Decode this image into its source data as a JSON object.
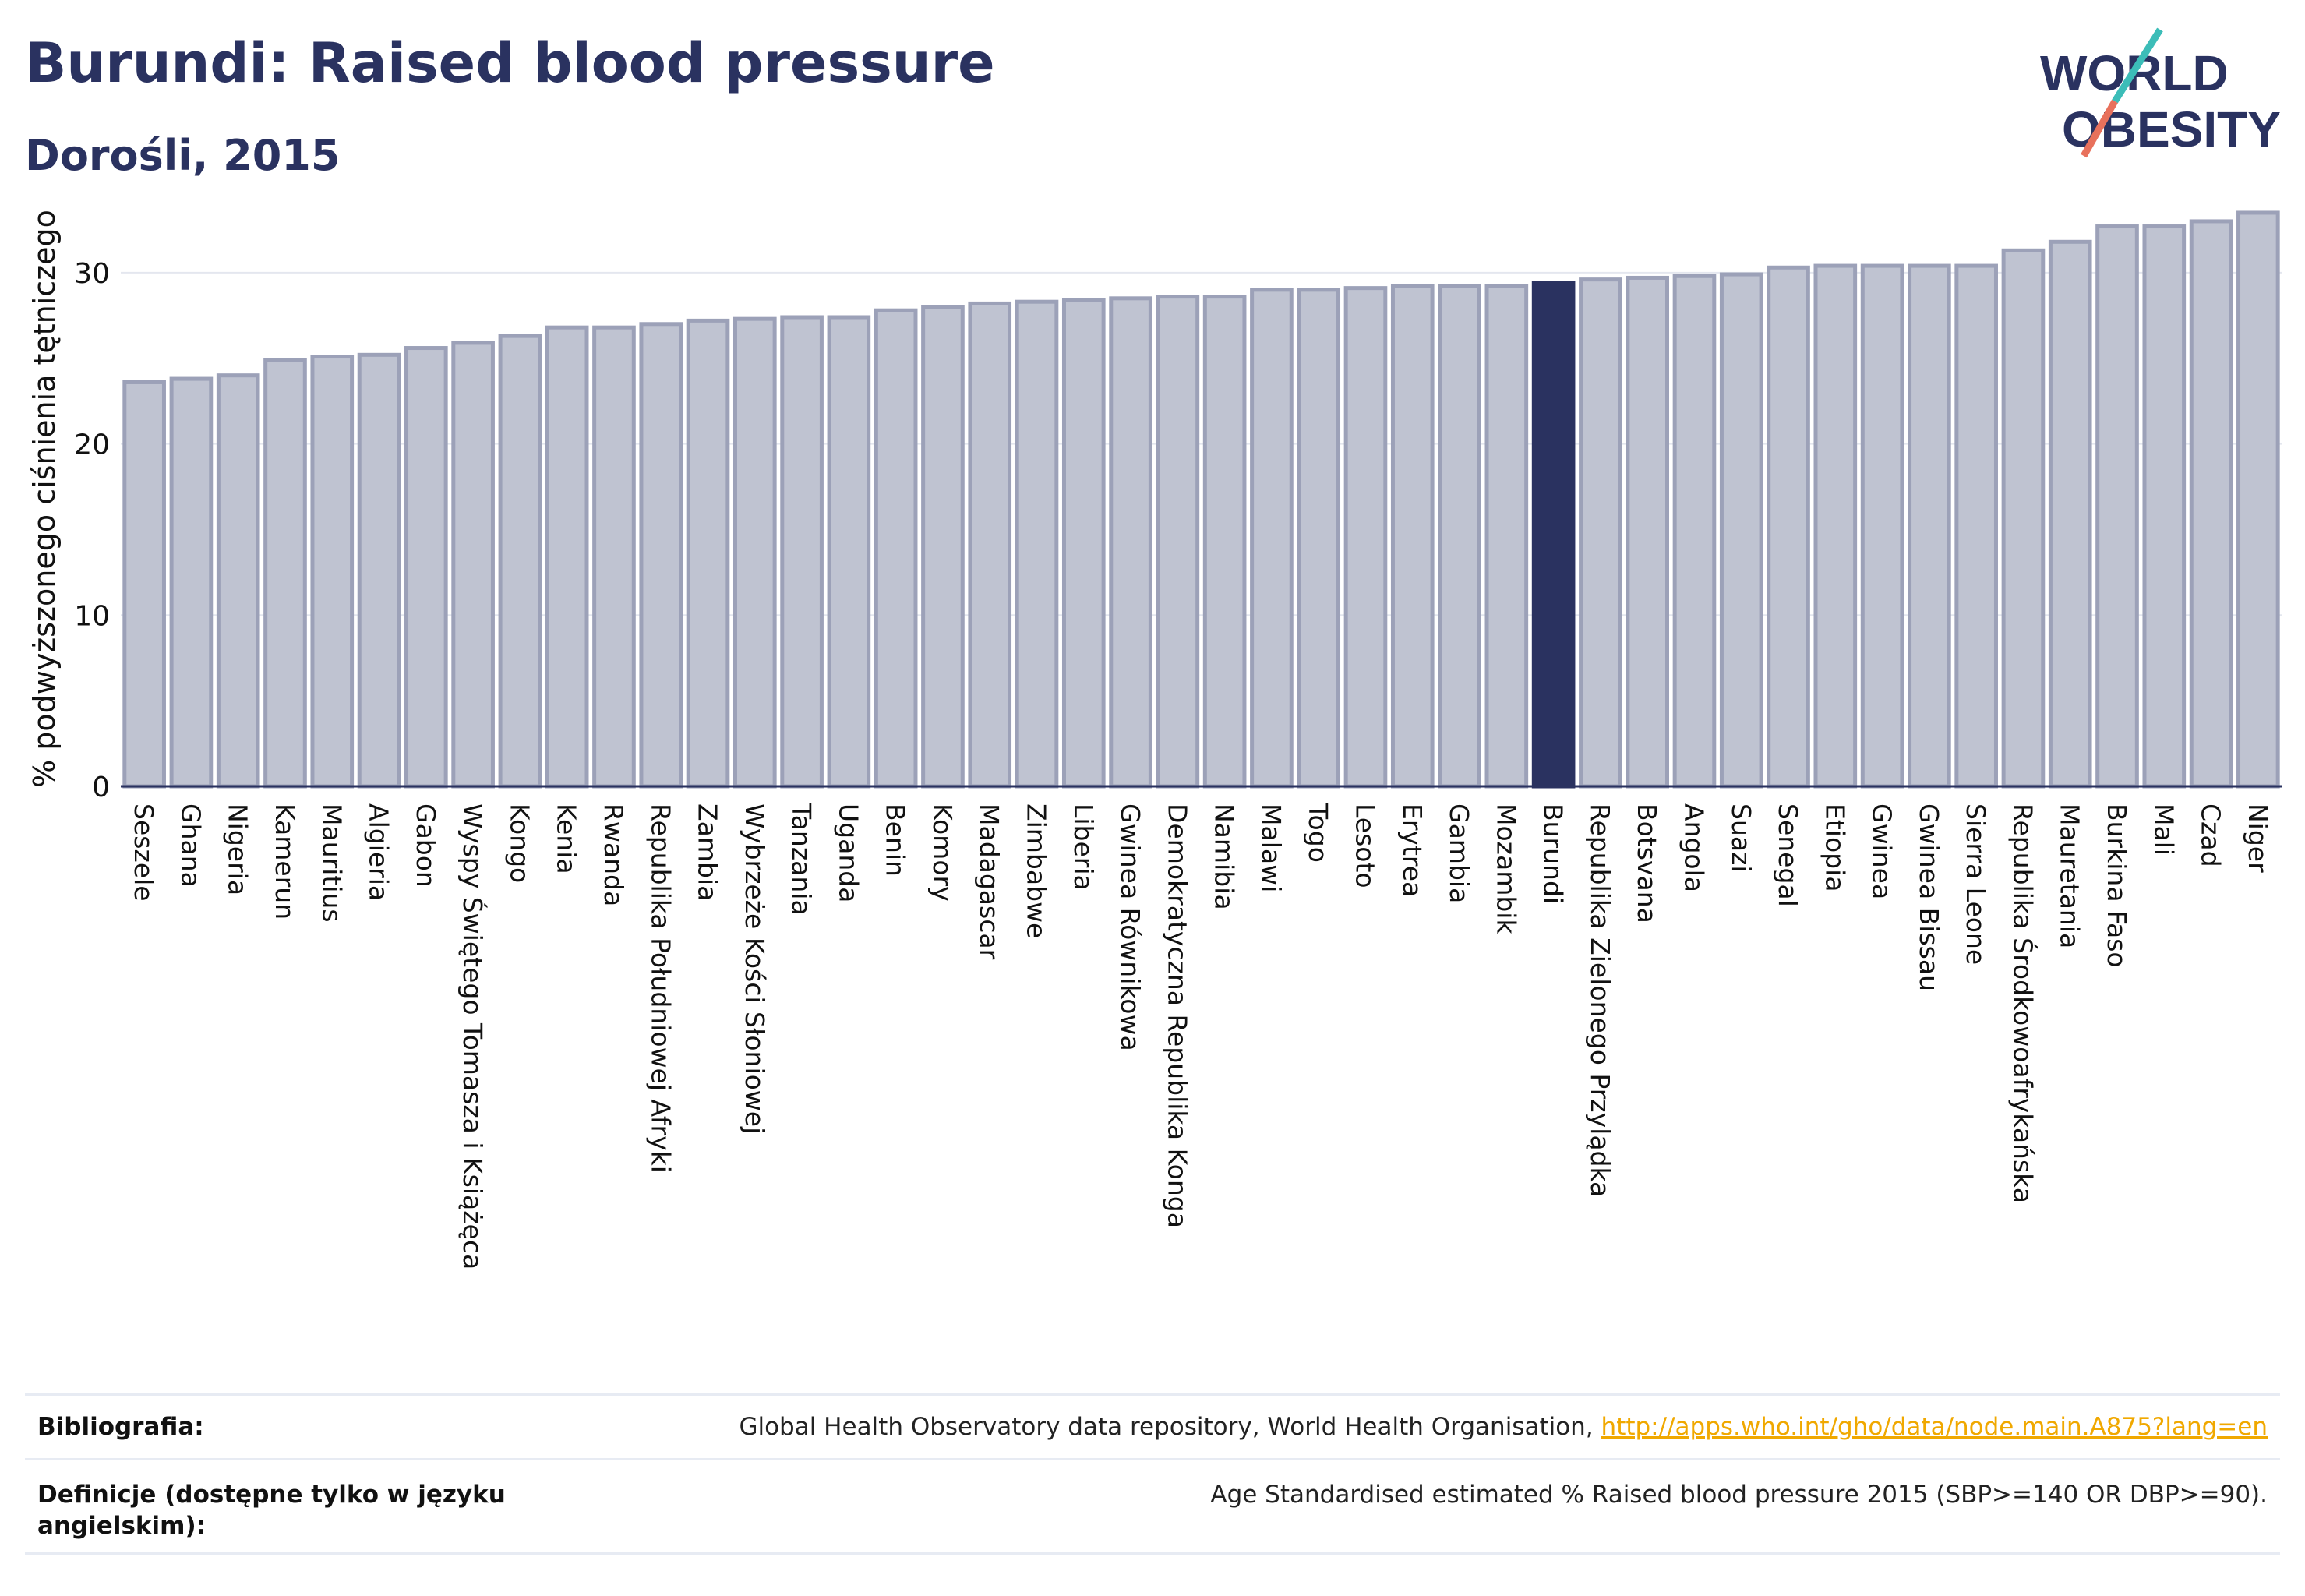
{
  "header": {
    "title": "Burundi: Raised blood pressure",
    "subtitle": "Dorośli, 2015"
  },
  "logo": {
    "line1": "WORLD",
    "line2": "OBESITY"
  },
  "colors": {
    "bar_fill": "#bfc3d1",
    "bar_stroke": "#9ca1b8",
    "highlight": "#2a3260",
    "grid": "#e4e7ef",
    "link": "#f0a800",
    "logo_teal": "#3cbdb8",
    "logo_coral": "#e8715c"
  },
  "chart_data": {
    "type": "bar",
    "title": "Burundi: Raised blood pressure",
    "subtitle": "Dorośli, 2015",
    "ylabel": "% podwyższonego ciśnienia tętniczego",
    "xlabel": "",
    "ylim": [
      0,
      35
    ],
    "yticks": [
      0,
      10,
      20,
      30
    ],
    "grid": true,
    "highlight_category": "Burundi",
    "categories": [
      "Seszele",
      "Ghana",
      "Nigeria",
      "Kamerun",
      "Mauritius",
      "Algieria",
      "Gabon",
      "Wyspy Świętego Tomasza i Książęca",
      "Kongo",
      "Kenia",
      "Rwanda",
      "Republika Południowej Afryki",
      "Zambia",
      "Wybrzeże Kości Słoniowej",
      "Tanzania",
      "Uganda",
      "Benin",
      "Komory",
      "Madagascar",
      "Zimbabwe",
      "Liberia",
      "Gwinea Równikowa",
      "Demokratyczna Republika Konga",
      "Namibia",
      "Malawi",
      "Togo",
      "Lesoto",
      "Erytrea",
      "Gambia",
      "Mozambik",
      "Burundi",
      "Republika Zielonego Przylądka",
      "Botsvana",
      "Angola",
      "Suazi",
      "Senegal",
      "Etiopia",
      "Gwinea",
      "Gwinea Bissau",
      "Sierra Leone",
      "Republika Środkowoafrykańska",
      "Mauretania",
      "Burkina Faso",
      "Mali",
      "Czad",
      "Niger"
    ],
    "values": [
      23.6,
      23.8,
      24.0,
      24.9,
      25.1,
      25.2,
      25.6,
      25.9,
      26.3,
      26.8,
      26.8,
      27.0,
      27.2,
      27.3,
      27.4,
      27.4,
      27.8,
      28.0,
      28.2,
      28.3,
      28.4,
      28.5,
      28.6,
      28.6,
      29.0,
      29.0,
      29.1,
      29.2,
      29.2,
      29.2,
      29.4,
      29.6,
      29.7,
      29.8,
      29.9,
      30.3,
      30.4,
      30.4,
      30.4,
      30.4,
      31.3,
      31.8,
      32.7,
      32.7,
      33.0,
      33.5
    ]
  },
  "footer": {
    "bibliography_label": "Bibliografia:",
    "bibliography_text": "Global Health Observatory data repository, World Health Organisation, ",
    "bibliography_link": "http://apps.who.int/gho/data/node.main.A875?lang=en",
    "definitions_label": "Definicje (dostępne tylko w języku angielskim):",
    "definitions_text": "Age Standardised estimated % Raised blood pressure 2015 (SBP>=140 OR DBP>=90)."
  }
}
